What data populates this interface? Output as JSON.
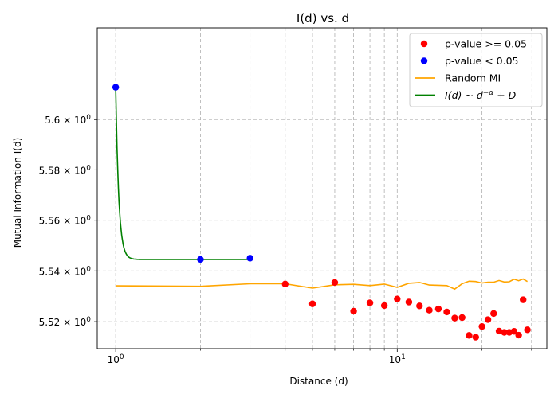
{
  "chart_data": {
    "type": "scatter",
    "title": "I(d) vs. d",
    "xlabel": "Distance (d)",
    "ylabel": "Mutual Information I(d)",
    "xscale": "log",
    "yscale": "log",
    "xlim": [
      0.86,
      34
    ],
    "ylim": [
      5.5094,
      5.6367
    ],
    "grid": true,
    "legend_position": "top-right",
    "x_ticks": [
      {
        "value": 1,
        "mantissa": "10",
        "exponent": "0"
      },
      {
        "value": 10,
        "mantissa": "10",
        "exponent": "1"
      }
    ],
    "y_ticks": [
      {
        "value": 5.52,
        "mantissa": "5.52 × 10",
        "exponent": "0"
      },
      {
        "value": 5.54,
        "mantissa": "5.54 × 10",
        "exponent": "0"
      },
      {
        "value": 5.56,
        "mantissa": "5.56 × 10",
        "exponent": "0"
      },
      {
        "value": 5.58,
        "mantissa": "5.58 × 10",
        "exponent": "0"
      },
      {
        "value": 5.6,
        "mantissa": "5.6 × 10",
        "exponent": "0"
      }
    ],
    "series": [
      {
        "name": "p-value >= 0.05",
        "kind": "scatter",
        "color": "#ff0000",
        "x": [
          4,
          5,
          6,
          7,
          8,
          9,
          10,
          11,
          12,
          13,
          14,
          15,
          16,
          17,
          18,
          19,
          20,
          21,
          22,
          23,
          24,
          25,
          26,
          27,
          28,
          29
        ],
        "y": [
          5.5348,
          5.527,
          5.5354,
          5.5241,
          5.5274,
          5.5263,
          5.5289,
          5.5277,
          5.5262,
          5.5245,
          5.525,
          5.5238,
          5.5214,
          5.5216,
          5.5146,
          5.5139,
          5.5181,
          5.5208,
          5.5232,
          5.5163,
          5.5158,
          5.5158,
          5.5162,
          5.5147,
          5.5286,
          5.5168
        ]
      },
      {
        "name": "p-value < 0.05",
        "kind": "scatter",
        "color": "#0000ff",
        "x": [
          1,
          2,
          3
        ],
        "y": [
          5.6129,
          5.5445,
          5.545
        ]
      },
      {
        "name": "Random MI",
        "kind": "line",
        "color": "#ffa500",
        "x": [
          1,
          2,
          3,
          4,
          5,
          6,
          7,
          8,
          9,
          10,
          11,
          12,
          13,
          14,
          15,
          16,
          17,
          18,
          19,
          20,
          21,
          22,
          23,
          24,
          25,
          26,
          27,
          28,
          29
        ],
        "y": [
          5.5341,
          5.5339,
          5.5349,
          5.5349,
          5.5332,
          5.5345,
          5.5347,
          5.5342,
          5.5348,
          5.5335,
          5.5351,
          5.5354,
          5.5344,
          5.5343,
          5.5342,
          5.5328,
          5.5349,
          5.5359,
          5.5358,
          5.5352,
          5.5355,
          5.5355,
          5.5362,
          5.5356,
          5.5357,
          5.5367,
          5.5361,
          5.5368,
          5.5358
        ]
      },
      {
        "name": "$I(d) \\sim d^{-\\alpha} + D$",
        "kind": "fit",
        "color": "#008000",
        "A": 0.0684,
        "alpha": 40,
        "D": 5.5445,
        "x_range": [
          1,
          3
        ]
      }
    ]
  },
  "legend": {
    "entries": [
      {
        "label": "p-value >= 0.05",
        "marker": "dot",
        "color": "#ff0000"
      },
      {
        "label": "p-value < 0.05",
        "marker": "dot",
        "color": "#0000ff"
      },
      {
        "label": "Random MI",
        "marker": "line",
        "color": "#ffa500"
      },
      {
        "label": "~",
        "marker": "line",
        "color": "#008000",
        "math": {
          "lhs": "I(d)",
          "base": "d",
          "exponent": "−α",
          "tail": "+ D"
        }
      }
    ]
  }
}
